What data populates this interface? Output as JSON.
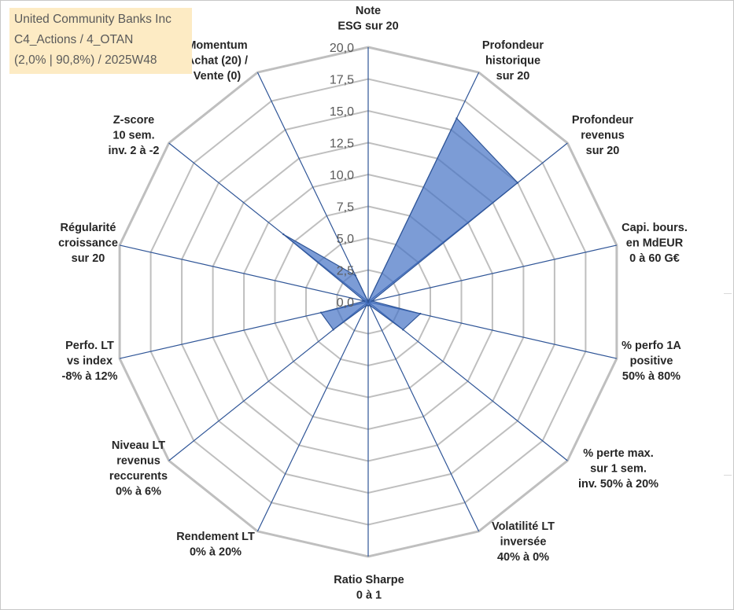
{
  "title_box": {
    "line1": "United Community Banks Inc",
    "line2": "C4_Actions / 4_OTAN",
    "line3": "(2,0% | 90,8%) / 2025W48"
  },
  "colors": {
    "grid": "#bfbfbf",
    "spoke": "#2f5597",
    "fill": "#4472c4",
    "fill_opacity": 0.7,
    "tick_text": "#595959",
    "label_text": "#262626",
    "title_bg": "#fdebc4"
  },
  "chart_data": {
    "type": "radar",
    "rlim": [
      0,
      20
    ],
    "tick_values": [
      0,
      2.5,
      5,
      7.5,
      10,
      12.5,
      15,
      17.5,
      20
    ],
    "tick_labels": [
      "0,0",
      "2,5",
      "5,0",
      "7,5",
      "10,0",
      "12,5",
      "15,0",
      "17,5",
      "20,0"
    ],
    "grid": true,
    "axes": [
      {
        "label": [
          "Note",
          "ESG sur 20"
        ],
        "value": 0
      },
      {
        "label": [
          "Profondeur",
          "historique",
          "sur 20"
        ],
        "value": 16
      },
      {
        "label": [
          "Profondeur",
          "revenus",
          "sur 20"
        ],
        "value": 15
      },
      {
        "label": [
          "Capi. bours.",
          "en MdEUR",
          "0 à 60 G€"
        ],
        "value": 0.3
      },
      {
        "label": [
          "% perfo 1A",
          "positive",
          "50% à 80%"
        ],
        "value": 4.2
      },
      {
        "label": [
          "% perte max.",
          "sur 1 sem.",
          "inv. 50% à 20%"
        ],
        "value": 3.5
      },
      {
        "label": [
          "Volatilité LT",
          "inversée",
          "40% à 0%"
        ],
        "value": 0.3
      },
      {
        "label": [
          "Ratio Sharpe",
          "0 à 1"
        ],
        "value": 0.3
      },
      {
        "label": [
          "Rendement LT",
          "0% à 20%"
        ],
        "value": 0.3
      },
      {
        "label": [
          "Niveau LT",
          "revenus",
          "reccurents",
          "0% à 6%"
        ],
        "value": 3.5
      },
      {
        "label": [
          "Perfo. LT",
          "vs index",
          "-8% à 12%"
        ],
        "value": 3.8
      },
      {
        "label": [
          "Régularité",
          "croissance",
          "sur 20"
        ],
        "value": 0.3
      },
      {
        "label": [
          "Z-score",
          "10 sem.",
          "inv. 2 à -2"
        ],
        "value": 8.5
      },
      {
        "label": [
          "Momentum",
          "Achat (20) /",
          "Vente (0)"
        ],
        "value": 2.3
      }
    ]
  }
}
